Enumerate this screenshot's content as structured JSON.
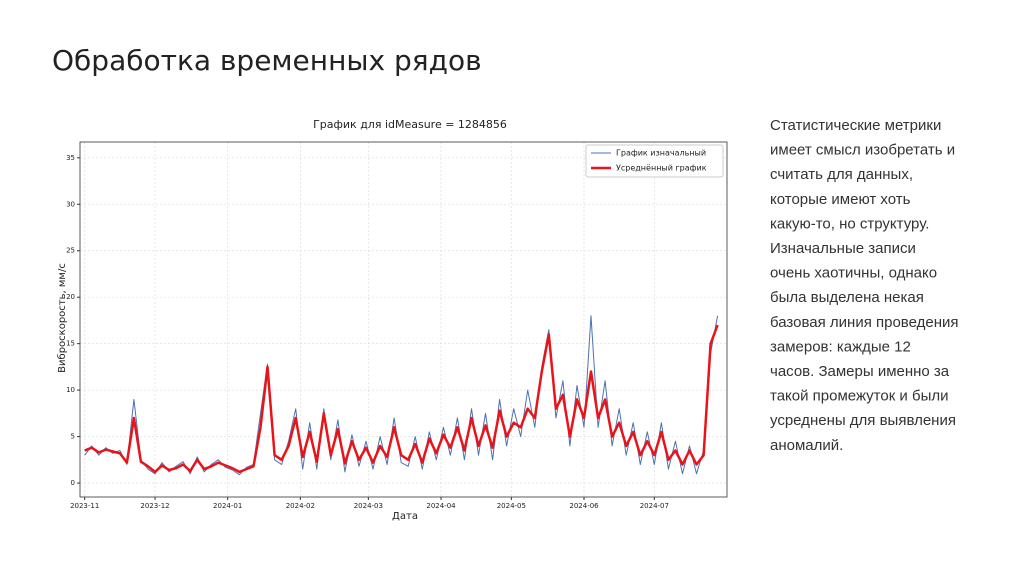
{
  "slide_title": "Обработка временных рядов",
  "text_lines": [
    "Статистические метрики",
    "имеет смысл изобретать и",
    "считать для данных,",
    "которые имеют хоть",
    "какую-то, но структуру.",
    "Изначальные записи",
    "очень хаотичны, однако",
    "была выделена некая",
    "базовая линия проведения",
    "замеров: каждые 12",
    "часов. Замеры именно за",
    "такой промежуток и были",
    "усреднены для выявления",
    "аномалий."
  ],
  "chart_data": {
    "type": "line",
    "title": "График для idMeasure = 1284856",
    "x_label": "Дата",
    "y_label": "Виброскорость, мм/с",
    "x": [
      0,
      3,
      6,
      9,
      12,
      15,
      18,
      21,
      24,
      27,
      30,
      33,
      36,
      39,
      42,
      45,
      48,
      51,
      54,
      57,
      60,
      63,
      66,
      69,
      72,
      75,
      78,
      81,
      84,
      87,
      90,
      93,
      96,
      99,
      102,
      105,
      108,
      111,
      114,
      117,
      120,
      123,
      126,
      129,
      132,
      135,
      138,
      141,
      144,
      147,
      150,
      153,
      156,
      159,
      162,
      165,
      168,
      171,
      174,
      177,
      180,
      183,
      186,
      189,
      192,
      195,
      198,
      201,
      204,
      207,
      210,
      213,
      216,
      219,
      222,
      225,
      228,
      231,
      234,
      237,
      240,
      243,
      246,
      249,
      252,
      255,
      258,
      261,
      264,
      267,
      270
    ],
    "series": [
      {
        "name": "График изначальный",
        "color": "#4c72b0",
        "width": 1,
        "values": [
          3,
          4,
          3,
          3.8,
          3.2,
          3.5,
          2,
          9,
          2.5,
          1.5,
          1,
          2.2,
          1.2,
          1.8,
          2.3,
          1,
          2.8,
          1.2,
          2,
          2.5,
          1.7,
          1.4,
          0.9,
          1.7,
          2,
          7.5,
          12.8,
          2.5,
          2,
          4.5,
          8,
          1.5,
          6.5,
          1.5,
          8,
          2.5,
          6.8,
          1.2,
          5.2,
          1.8,
          4.5,
          1.5,
          5,
          2,
          7,
          2.2,
          1.8,
          5,
          1.5,
          5.5,
          2.5,
          6,
          3,
          7,
          2.5,
          8,
          3,
          7.5,
          2.5,
          9,
          4,
          8,
          5,
          10,
          6,
          12.5,
          16.5,
          7,
          11,
          4,
          10.5,
          6,
          18,
          6,
          11,
          4,
          8,
          3,
          6.5,
          2,
          5.5,
          2,
          6.5,
          1.5,
          4.5,
          1,
          4,
          1,
          3.5,
          14,
          18
        ]
      },
      {
        "name": "Усреднённый график",
        "color": "#e8141a",
        "width": 2.5,
        "values": [
          3.5,
          3.8,
          3.3,
          3.6,
          3.4,
          3.2,
          2.2,
          7,
          2.3,
          1.8,
          1.2,
          1.9,
          1.4,
          1.6,
          2,
          1.3,
          2.5,
          1.5,
          1.8,
          2.2,
          1.9,
          1.6,
          1.2,
          1.5,
          1.8,
          6,
          12.5,
          3,
          2.5,
          4,
          7,
          2.8,
          5.5,
          2.3,
          7.5,
          3,
          5.8,
          2.1,
          4.5,
          2.5,
          3.8,
          2.2,
          4,
          2.8,
          6,
          3,
          2.5,
          4.2,
          2.2,
          4.8,
          3.2,
          5.2,
          3.8,
          6,
          3.5,
          7,
          4,
          6.2,
          3.8,
          7.8,
          5,
          6.5,
          6,
          8,
          7,
          12,
          16,
          8,
          9.5,
          5,
          9,
          7,
          12,
          7,
          9,
          5,
          6.5,
          4,
          5.5,
          3,
          4.5,
          3,
          5.5,
          2.5,
          3.5,
          2,
          3.5,
          2,
          3,
          15,
          17
        ]
      }
    ],
    "xlim": [
      -2,
      274
    ],
    "ylim": [
      -1.5,
      36.7
    ],
    "xticks": [
      {
        "value": 0,
        "label": "2023-11"
      },
      {
        "value": 30,
        "label": "2023-12"
      },
      {
        "value": 61,
        "label": "2024-01"
      },
      {
        "value": 92,
        "label": "2024-02"
      },
      {
        "value": 121,
        "label": "2024-03"
      },
      {
        "value": 152,
        "label": "2024-04"
      },
      {
        "value": 182,
        "label": "2024-05"
      },
      {
        "value": 213,
        "label": "2024-06"
      },
      {
        "value": 243,
        "label": "2024-07"
      }
    ],
    "yticks": [
      0,
      5,
      10,
      15,
      20,
      25,
      30,
      35
    ],
    "grid": true,
    "legend": "upper right"
  }
}
